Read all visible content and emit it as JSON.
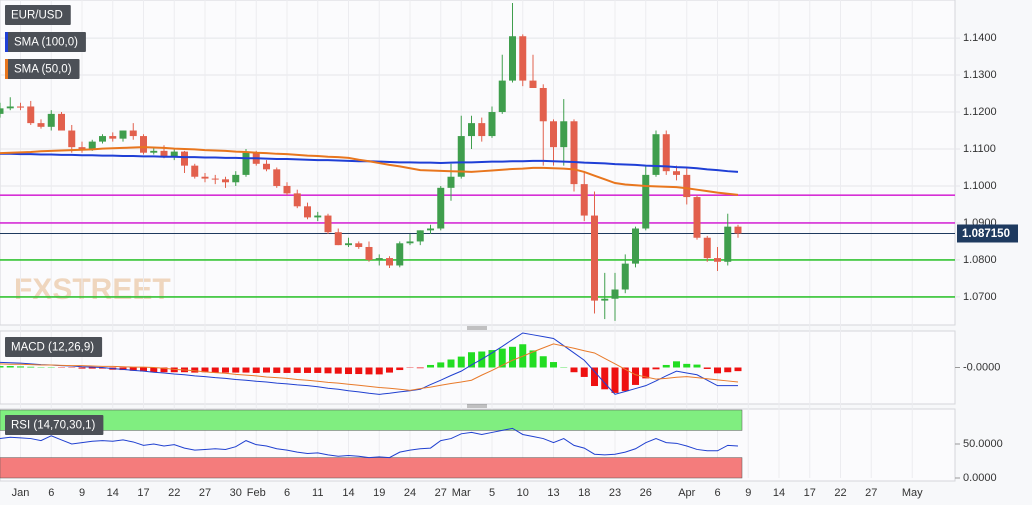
{
  "chart_data": [
    {
      "type": "candlestick",
      "title": "EUR/USD",
      "ylim": [
        1.0624,
        1.1503
      ],
      "yticks": [
        {
          "value": 1.07,
          "label": "1.0700"
        },
        {
          "value": 1.08,
          "label": "1.0800"
        },
        {
          "value": 1.09,
          "label": "1.0900"
        },
        {
          "value": 1.1,
          "label": "1.1000"
        },
        {
          "value": 1.11,
          "label": "1.1100"
        },
        {
          "value": 1.12,
          "label": "1.1200"
        },
        {
          "value": 1.13,
          "label": "1.1300"
        },
        {
          "value": 1.14,
          "label": "1.1400"
        }
      ],
      "grid": true,
      "up_color": "#3f9e4d",
      "down_color": "#e2604d",
      "open": [
        1.1195,
        1.121,
        1.1215,
        1.1215,
        1.117,
        1.116,
        1.1195,
        1.115,
        1.1105,
        1.11,
        1.112,
        1.1135,
        1.1128,
        1.115,
        1.1135,
        1.109,
        1.1095,
        1.108,
        1.1093,
        1.1055,
        1.1025,
        1.102,
        1.1018,
        1.101,
        1.103,
        1.109,
        1.106,
        1.1045,
        1.1,
        1.098,
        1.0945,
        1.0915,
        1.092,
        1.0875,
        1.084,
        1.0845,
        1.0835,
        1.08,
        1.0805,
        1.0785,
        1.0845,
        1.085,
        1.088,
        1.0885,
        1.0995,
        1.1025,
        1.1135,
        1.117,
        1.1135,
        1.12,
        1.1285,
        1.1405,
        1.1285,
        1.1265,
        1.1175,
        1.1105,
        1.1175,
        1.1005,
        1.092,
        1.069,
        1.0695,
        1.072,
        1.079,
        1.0885,
        1.103,
        1.114,
        1.104,
        1.103,
        1.097,
        1.086,
        1.0805,
        1.0795,
        1.089
      ],
      "high": [
        1.1225,
        1.124,
        1.1225,
        1.123,
        1.118,
        1.1205,
        1.12,
        1.1165,
        1.112,
        1.1125,
        1.114,
        1.1145,
        1.115,
        1.117,
        1.114,
        1.1105,
        1.111,
        1.11,
        1.1095,
        1.106,
        1.1035,
        1.103,
        1.1025,
        1.104,
        1.11,
        1.1095,
        1.107,
        1.105,
        1.101,
        1.099,
        1.0955,
        1.093,
        1.0925,
        1.0885,
        1.086,
        1.085,
        1.085,
        1.0815,
        1.081,
        1.085,
        1.087,
        1.088,
        1.0895,
        1.1,
        1.106,
        1.119,
        1.119,
        1.1185,
        1.1215,
        1.1355,
        1.1495,
        1.141,
        1.1355,
        1.1275,
        1.118,
        1.1235,
        1.118,
        1.104,
        1.0985,
        1.0765,
        1.0765,
        1.0815,
        1.089,
        1.1055,
        1.115,
        1.115,
        1.1055,
        1.105,
        1.0975,
        1.0865,
        1.0835,
        1.0925,
        1.0895
      ],
      "low": [
        1.1185,
        1.1205,
        1.1205,
        1.1165,
        1.1155,
        1.115,
        1.115,
        1.109,
        1.109,
        1.1095,
        1.1115,
        1.112,
        1.112,
        1.1125,
        1.1085,
        1.1085,
        1.1075,
        1.107,
        1.1035,
        1.102,
        1.101,
        1.1005,
        1.0995,
        1.1,
        1.1025,
        1.1055,
        1.104,
        1.0995,
        1.0975,
        1.094,
        1.091,
        1.0905,
        1.087,
        1.084,
        1.0835,
        1.083,
        1.0795,
        1.0785,
        1.0778,
        1.078,
        1.084,
        1.084,
        1.087,
        1.088,
        1.096,
        1.102,
        1.11,
        1.112,
        1.113,
        1.1195,
        1.128,
        1.127,
        1.1265,
        1.1055,
        1.1055,
        1.1055,
        1.0985,
        1.0905,
        1.0655,
        1.064,
        1.0635,
        1.071,
        1.078,
        1.088,
        1.1025,
        1.103,
        1.1015,
        1.095,
        1.0855,
        1.0795,
        1.077,
        1.0785,
        1.086
      ],
      "close": [
        1.121,
        1.1215,
        1.1212,
        1.117,
        1.116,
        1.1195,
        1.115,
        1.1105,
        1.11,
        1.112,
        1.1135,
        1.1128,
        1.115,
        1.1135,
        1.109,
        1.1095,
        1.108,
        1.1093,
        1.1055,
        1.1025,
        1.102,
        1.1018,
        1.101,
        1.103,
        1.109,
        1.106,
        1.1045,
        1.1,
        1.098,
        1.0945,
        1.0915,
        1.092,
        1.0875,
        1.084,
        1.0845,
        1.0835,
        1.08,
        1.0805,
        1.0785,
        1.0845,
        1.085,
        1.088,
        1.0885,
        1.0995,
        1.1025,
        1.1135,
        1.117,
        1.1135,
        1.12,
        1.1285,
        1.1405,
        1.1285,
        1.1265,
        1.1175,
        1.1105,
        1.1175,
        1.1005,
        1.092,
        1.069,
        1.0695,
        1.072,
        1.079,
        1.0885,
        1.103,
        1.114,
        1.104,
        1.103,
        1.097,
        1.086,
        1.0805,
        1.0795,
        1.089,
        1.08715
      ],
      "series": [
        {
          "name": "SMA (100,0)",
          "color": "#1f3fd6",
          "values": [
            1.1087,
            1.1087,
            1.1086,
            1.1086,
            1.1085,
            1.1085,
            1.1084,
            1.1084,
            1.1083,
            1.1083,
            1.1082,
            1.1082,
            1.1081,
            1.1081,
            1.108,
            1.108,
            1.1079,
            1.1079,
            1.1078,
            1.1078,
            1.1077,
            1.1077,
            1.1076,
            1.1076,
            1.1075,
            1.1075,
            1.1074,
            1.1073,
            1.1073,
            1.1072,
            1.1071,
            1.107,
            1.107,
            1.1069,
            1.1068,
            1.1067,
            1.1067,
            1.1066,
            1.1065,
            1.1064,
            1.1064,
            1.1063,
            1.1063,
            1.1062,
            1.1063,
            1.1064,
            1.1064,
            1.1065,
            1.1066,
            1.1066,
            1.1067,
            1.1067,
            1.1068,
            1.1068,
            1.1067,
            1.1066,
            1.1065,
            1.1063,
            1.1062,
            1.1061,
            1.1059,
            1.1058,
            1.1057,
            1.1055,
            1.1054,
            1.1053,
            1.1051,
            1.105,
            1.1048,
            1.1045,
            1.1043,
            1.104,
            1.1038
          ]
        },
        {
          "name": "SMA (50,0)",
          "color": "#e8761e",
          "values": [
            1.1089,
            1.109,
            1.1091,
            1.1092,
            1.1094,
            1.1095,
            1.1096,
            1.1097,
            1.1098,
            1.1099,
            1.1101,
            1.1102,
            1.1103,
            1.1104,
            1.1105,
            1.1104,
            1.1103,
            1.1101,
            1.11,
            1.1099,
            1.1097,
            1.1096,
            1.1095,
            1.1093,
            1.1092,
            1.109,
            1.1089,
            1.1087,
            1.1086,
            1.1084,
            1.1082,
            1.1081,
            1.1079,
            1.1078,
            1.1076,
            1.1071,
            1.1067,
            1.1062,
            1.1057,
            1.1053,
            1.1048,
            1.1043,
            1.1042,
            1.1041,
            1.104,
            1.1039,
            1.1038,
            1.104,
            1.1042,
            1.1044,
            1.1046,
            1.1047,
            1.1049,
            1.1049,
            1.1048,
            1.1047,
            1.1045,
            1.1038,
            1.1028,
            1.1018,
            1.1008,
            1.1004,
            1.1002,
            1.1,
            1.0999,
            1.0998,
            1.0997,
            1.0994,
            1.099,
            1.0986,
            1.0982,
            1.0979,
            1.0976
          ]
        }
      ],
      "hlines": [
        {
          "value": 1.0975,
          "color": "#d62fd6"
        },
        {
          "value": 1.09,
          "color": "#d62fd6"
        },
        {
          "value": 1.08,
          "color": "#35c435"
        },
        {
          "value": 1.07,
          "color": "#35c435"
        }
      ],
      "last": {
        "value": 1.08715,
        "label": "1.087150",
        "color": "#1e3a5f"
      },
      "watermark": "FXSTREET"
    },
    {
      "type": "macd",
      "title": "MACD (12,26,9)",
      "ylim": [
        -0.0095,
        0.0095
      ],
      "yticks": [
        {
          "value": 0,
          "label": "-0.0000"
        }
      ],
      "up_color": "#22dd22",
      "down_color": "#ee1111",
      "histogram": [
        0.0004,
        0.0004,
        0.0003,
        0.0002,
        0.0001,
        0.0001,
        -0.0001,
        -0.0001,
        -0.0003,
        -0.0003,
        -0.0003,
        -0.0006,
        -0.0007,
        -0.0009,
        -0.0011,
        -0.0013,
        -0.0013,
        -0.0013,
        -0.0013,
        -0.0014,
        -0.0013,
        -0.0014,
        -0.0014,
        -0.0014,
        -0.0014,
        -0.0015,
        -0.0014,
        -0.0015,
        -0.0015,
        -0.0015,
        -0.0015,
        -0.0015,
        -0.0016,
        -0.0017,
        -0.0018,
        -0.0018,
        -0.0019,
        -0.0019,
        -0.0014,
        -0.0007,
        -0.0001,
        -0.0002,
        0.0007,
        0.0014,
        0.0022,
        0.003,
        0.0042,
        0.0044,
        0.0048,
        0.0052,
        0.0057,
        0.0064,
        0.0047,
        0.0031,
        0.0015,
        0.0001,
        -0.0013,
        -0.0026,
        -0.0051,
        -0.006,
        -0.007,
        -0.0065,
        -0.0048,
        -0.003,
        -0.0005,
        0.0007,
        0.0017,
        0.001,
        0.0008,
        -0.0004,
        -0.0016,
        -0.0013,
        -0.001
      ],
      "series": [
        {
          "color": "#2040d0",
          "values": [
            0.0014,
            0.0013,
            0.0012,
            0.001,
            0.0008,
            0.0007,
            0.0005,
            0.0004,
            0.0002,
            0.0001,
            0,
            -0.0003,
            -0.0005,
            -0.0008,
            -0.001,
            -0.0013,
            -0.0015,
            -0.0018,
            -0.002,
            -0.0023,
            -0.0025,
            -0.0028,
            -0.003,
            -0.0033,
            -0.0035,
            -0.0038,
            -0.004,
            -0.0043,
            -0.0045,
            -0.0048,
            -0.005,
            -0.0053,
            -0.0057,
            -0.006,
            -0.0064,
            -0.0067,
            -0.0071,
            -0.0074,
            -0.0071,
            -0.0067,
            -0.0064,
            -0.006,
            -0.0047,
            -0.0035,
            -0.0022,
            -0.001,
            0.0007,
            0.0023,
            0.004,
            0.0058,
            0.0077,
            0.0095,
            0.009,
            0.0085,
            0.008,
            0.006,
            0.004,
            0.002,
            -0.0011,
            -0.0043,
            -0.0074,
            -0.0066,
            -0.0058,
            -0.005,
            -0.0037,
            -0.0023,
            -0.001,
            -0.0015,
            -0.002,
            -0.0035,
            -0.005,
            -0.005,
            -0.005
          ]
        },
        {
          "color": "#e87a2a",
          "values": [
            0.001,
            0.0009,
            0.0009,
            0.0008,
            0.0007,
            0.0007,
            0.0006,
            0.0005,
            0.0005,
            0.0004,
            0.0003,
            0.0003,
            0.0002,
            0.0001,
            0.0001,
            0,
            -0.0002,
            -0.0005,
            -0.0007,
            -0.0009,
            -0.0012,
            -0.0014,
            -0.0016,
            -0.0019,
            -0.0021,
            -0.0023,
            -0.0026,
            -0.0028,
            -0.003,
            -0.0033,
            -0.0035,
            -0.0038,
            -0.0041,
            -0.0043,
            -0.0046,
            -0.0049,
            -0.0052,
            -0.0055,
            -0.0057,
            -0.006,
            -0.0063,
            -0.0058,
            -0.0054,
            -0.0049,
            -0.0044,
            -0.004,
            -0.0035,
            -0.0021,
            -0.0008,
            0.0006,
            0.002,
            0.0031,
            0.0043,
            0.0054,
            0.0065,
            0.0059,
            0.0053,
            0.0046,
            0.004,
            0.0025,
            0.001,
            -0.0005,
            -0.002,
            -0.0026,
            -0.0032,
            -0.003,
            -0.0027,
            -0.0025,
            -0.0028,
            -0.0031,
            -0.0034,
            -0.0037,
            -0.004
          ]
        }
      ]
    },
    {
      "type": "line",
      "title": "RSI (14,70,30,1)",
      "ylim": [
        0,
        100
      ],
      "yticks": [
        {
          "value": 0,
          "label": "0.0000"
        },
        {
          "value": 50,
          "label": "50.0000"
        }
      ],
      "bands": [
        {
          "from": 70,
          "to": 100,
          "color": "#80ee80"
        },
        {
          "from": 0,
          "to": 30,
          "color": "#f47c7c"
        }
      ],
      "series": [
        {
          "color": "#2040d0",
          "values": [
            58,
            60,
            59,
            58,
            55,
            62,
            56,
            50,
            52,
            54,
            55,
            54,
            56,
            53,
            48,
            50,
            47,
            49,
            44,
            41,
            42,
            43,
            42,
            46,
            55,
            49,
            47,
            43,
            41,
            38,
            36,
            37,
            34,
            32,
            33,
            32,
            30,
            31,
            30,
            38,
            41,
            43,
            44,
            55,
            58,
            65,
            67,
            64,
            67,
            70,
            73,
            64,
            61,
            58,
            52,
            58,
            48,
            44,
            35,
            34,
            35,
            38,
            43,
            52,
            58,
            52,
            51,
            47,
            42,
            40,
            40,
            48,
            47,
            null,
            null,
            null,
            null,
            null,
            null,
            null,
            null,
            null,
            null,
            null,
            null,
            null,
            null,
            null,
            null,
            null
          ]
        }
      ],
      "categories": [
        null,
        null,
        "Jan",
        null,
        null,
        "6",
        null,
        null,
        "9",
        null,
        null,
        "14",
        null,
        null,
        "17",
        null,
        null,
        "22",
        null,
        null,
        "27",
        null,
        null,
        "30",
        null,
        "Feb",
        null,
        null,
        "6",
        null,
        null,
        "11",
        null,
        null,
        "14",
        null,
        null,
        "19",
        null,
        null,
        "24",
        null,
        null,
        "27",
        null,
        "Mar",
        null,
        null,
        "5",
        null,
        null,
        "10",
        null,
        null,
        "13",
        null,
        null,
        "18",
        null,
        null,
        "23",
        null,
        null,
        "26",
        null,
        null,
        null,
        "Apr",
        null,
        null,
        "6",
        null,
        null,
        "9",
        null,
        null,
        "14",
        null,
        null,
        "17",
        null,
        null,
        "22",
        null,
        null,
        "27",
        null,
        null,
        null,
        "May"
      ]
    }
  ]
}
